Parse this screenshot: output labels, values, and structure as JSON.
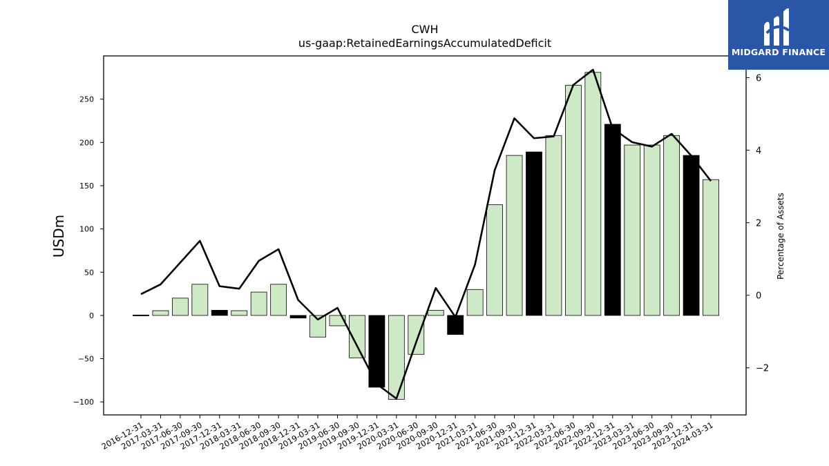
{
  "chart_data": {
    "type": "bar",
    "title": "CWH",
    "subtitle": "us-gaap:RetainedEarningsAccumulatedDeficit",
    "ylabel": "USDm",
    "y2label": "Percentage of Assets",
    "ylim": [
      -115,
      300
    ],
    "y2lim": [
      -3.3,
      6.6
    ],
    "yticks": [
      -100,
      -50,
      0,
      50,
      100,
      150,
      200,
      250
    ],
    "y2ticks": [
      -2,
      0,
      2,
      4,
      6
    ],
    "categories": [
      "2016-12-31",
      "2017-03-31",
      "2017-06-30",
      "2017-09-30",
      "2017-12-31",
      "2018-03-31",
      "2018-06-30",
      "2018-09-30",
      "2018-12-31",
      "2019-03-31",
      "2019-06-30",
      "2019-09-30",
      "2019-12-31",
      "2020-03-31",
      "2020-06-30",
      "2020-09-30",
      "2020-12-31",
      "2021-03-31",
      "2021-06-30",
      "2021-09-30",
      "2021-12-31",
      "2022-03-31",
      "2022-06-30",
      "2022-09-30",
      "2022-12-31",
      "2023-03-31",
      "2023-06-30",
      "2023-09-30",
      "2023-12-31",
      "2024-03-31"
    ],
    "values": [
      0.5,
      5.5,
      20,
      36,
      6,
      5.5,
      27,
      36,
      -3,
      -25,
      -12,
      -49,
      -83,
      -97,
      -45,
      6,
      -22,
      30,
      128,
      185,
      189,
      208,
      266,
      281,
      221,
      197,
      197,
      208,
      185,
      157
    ],
    "bar_styles": [
      "black",
      "green",
      "green",
      "green",
      "black",
      "green",
      "green",
      "green",
      "black",
      "green",
      "green",
      "green",
      "black",
      "green",
      "green",
      "green",
      "black",
      "green",
      "green",
      "green",
      "black",
      "green",
      "green",
      "green",
      "black",
      "green",
      "green",
      "green",
      "black",
      "green"
    ],
    "line_values": [
      0.03,
      0.3,
      0.9,
      1.5,
      0.25,
      0.18,
      0.95,
      1.27,
      -0.13,
      -0.67,
      -0.35,
      -1.4,
      -2.45,
      -2.85,
      -1.3,
      0.2,
      -0.6,
      0.85,
      3.45,
      4.88,
      4.33,
      4.38,
      5.8,
      6.22,
      4.6,
      4.22,
      4.1,
      4.45,
      3.85,
      3.15
    ],
    "colors": {
      "bar_green": "#cde9c5",
      "bar_black": "#000000",
      "line": "#000000"
    }
  },
  "logo": {
    "text": "MIDGARD FINANCE",
    "color": "#2a56a8"
  }
}
